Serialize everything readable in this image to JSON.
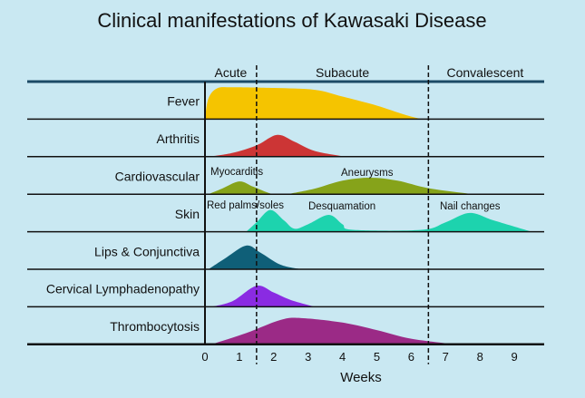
{
  "chart_data": {
    "type": "area",
    "title": "Clinical manifestations of Kawasaki Disease",
    "xlabel": "Weeks",
    "xlim": [
      0,
      9.8
    ],
    "xticks": [
      0,
      1,
      2,
      3,
      4,
      5,
      6,
      7,
      8,
      9
    ],
    "phases": [
      {
        "label": "Acute",
        "start": 0,
        "end": 1.5
      },
      {
        "label": "Subacute",
        "start": 1.5,
        "end": 6.5
      },
      {
        "label": "Convalescent",
        "start": 6.5,
        "end": 9.8
      }
    ],
    "rows": [
      {
        "label": "Fever",
        "color": "#f5c400",
        "curves": [
          {
            "label": "",
            "points": [
              [
                0,
                0
              ],
              [
                0.1,
                0.55
              ],
              [
                0.35,
                0.82
              ],
              [
                0.8,
                0.85
              ],
              [
                2,
                0.83
              ],
              [
                3.2,
                0.78
              ],
              [
                4,
                0.6
              ],
              [
                5,
                0.36
              ],
              [
                5.8,
                0.12
              ],
              [
                6.3,
                0
              ]
            ]
          }
        ]
      },
      {
        "label": "Arthritis",
        "color": "#cc3535",
        "curves": [
          {
            "label": "",
            "points": [
              [
                0.1,
                0
              ],
              [
                0.8,
                0.1
              ],
              [
                1.5,
                0.3
              ],
              [
                2.1,
                0.58
              ],
              [
                2.6,
                0.4
              ],
              [
                3.2,
                0.15
              ],
              [
                4.1,
                0
              ]
            ]
          }
        ]
      },
      {
        "label": "Cardiovascular",
        "color": "#86a31a",
        "curves": [
          {
            "label": "Myocarditis",
            "points": [
              [
                0.1,
                0
              ],
              [
                0.5,
                0.15
              ],
              [
                1,
                0.34
              ],
              [
                1.4,
                0.2
              ],
              [
                1.9,
                0.02
              ],
              [
                2.2,
                0
              ]
            ]
          },
          {
            "label": "Aneurysms",
            "points": [
              [
                2.4,
                0
              ],
              [
                3.2,
                0.15
              ],
              [
                4,
                0.36
              ],
              [
                4.8,
                0.44
              ],
              [
                5.6,
                0.36
              ],
              [
                6.5,
                0.16
              ],
              [
                7.8,
                0
              ]
            ]
          }
        ]
      },
      {
        "label": "Skin",
        "color": "#1dd3ae",
        "curves": [
          {
            "label": "Red palms/soles",
            "points": [
              [
                1.2,
                0
              ],
              [
                1.5,
                0.25
              ],
              [
                1.9,
                0.58
              ],
              [
                2.3,
                0.3
              ],
              [
                2.6,
                0.08
              ],
              [
                3,
                0.2
              ],
              [
                3.6,
                0.45
              ],
              [
                4,
                0.2
              ],
              [
                4.3,
                0.05
              ],
              [
                6.3,
                0.05
              ],
              [
                7,
                0.25
              ],
              [
                7.7,
                0.5
              ],
              [
                8.4,
                0.3
              ],
              [
                9.5,
                0
              ]
            ]
          }
        ],
        "labels": [
          "Red palms/soles",
          "Desquamation",
          "Nail changes"
        ]
      },
      {
        "label": "Lips & Conjunctiva",
        "color": "#0f5f78",
        "curves": [
          {
            "label": "",
            "points": [
              [
                0.1,
                0
              ],
              [
                0.6,
                0.3
              ],
              [
                1.2,
                0.63
              ],
              [
                1.6,
                0.45
              ],
              [
                2.2,
                0.12
              ],
              [
                2.8,
                0
              ]
            ]
          }
        ]
      },
      {
        "label": "Cervical Lymphadenopathy",
        "color": "#8a2be2",
        "curves": [
          {
            "label": "",
            "points": [
              [
                0.2,
                0
              ],
              [
                0.8,
                0.15
              ],
              [
                1.5,
                0.56
              ],
              [
                2,
                0.38
              ],
              [
                2.5,
                0.18
              ],
              [
                3.2,
                0
              ]
            ]
          }
        ]
      },
      {
        "label": "Thrombocytosis",
        "color": "#9b2a86",
        "curves": [
          {
            "label": "",
            "points": [
              [
                0.2,
                0
              ],
              [
                1.2,
                0.3
              ],
              [
                2.2,
                0.65
              ],
              [
                2.8,
                0.7
              ],
              [
                4,
                0.58
              ],
              [
                5,
                0.38
              ],
              [
                6,
                0.15
              ],
              [
                7.3,
                0
              ]
            ]
          }
        ]
      }
    ]
  }
}
